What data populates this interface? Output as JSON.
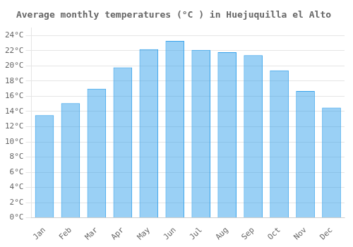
{
  "chart_data": {
    "type": "bar",
    "title": "Average monthly temperatures (°C ) in Huejuquilla el Alto",
    "categories": [
      "Jan",
      "Feb",
      "Mar",
      "Apr",
      "May",
      "Jun",
      "Jul",
      "Aug",
      "Sep",
      "Oct",
      "Nov",
      "Dec"
    ],
    "values": [
      13.5,
      15.1,
      17.0,
      19.8,
      22.2,
      23.3,
      22.1,
      21.8,
      21.4,
      19.4,
      16.7,
      14.5
    ],
    "ylim": [
      0,
      25
    ],
    "yticks": [
      {
        "value": 0,
        "label": "0°C"
      },
      {
        "value": 2,
        "label": "2°C"
      },
      {
        "value": 4,
        "label": "4°C"
      },
      {
        "value": 6,
        "label": "6°C"
      },
      {
        "value": 8,
        "label": "8°C"
      },
      {
        "value": 10,
        "label": "10°C"
      },
      {
        "value": 12,
        "label": "12°C"
      },
      {
        "value": 14,
        "label": "14°C"
      },
      {
        "value": 16,
        "label": "16°C"
      },
      {
        "value": 18,
        "label": "18°C"
      },
      {
        "value": 20,
        "label": "20°C"
      },
      {
        "value": 22,
        "label": "22°C"
      },
      {
        "value": 24,
        "label": "24°C"
      }
    ],
    "grid": true
  }
}
